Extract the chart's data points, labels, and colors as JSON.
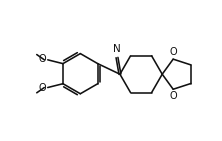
{
  "bg_color": "#ffffff",
  "line_color": "#111111",
  "line_width": 1.15,
  "font_size": 7.0,
  "figsize": [
    2.22,
    1.41
  ],
  "dpi": 100,
  "xlim": [
    -1.0,
    9.5
  ],
  "ylim": [
    -0.5,
    6.0
  ]
}
